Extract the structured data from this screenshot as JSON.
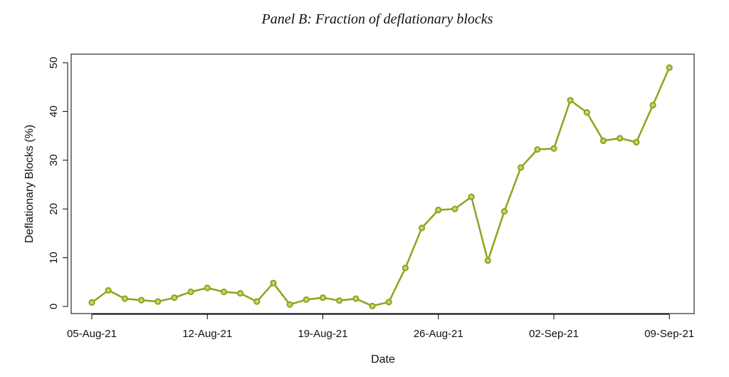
{
  "chart_data": {
    "type": "line",
    "title": "Panel B: Fraction of deflationary blocks",
    "xlabel": "Date",
    "ylabel": "Deflationary Blocks (%)",
    "ylim": [
      0,
      50
    ],
    "yticks": [
      0,
      10,
      20,
      30,
      40,
      50
    ],
    "x_tick_labels": [
      "05-Aug-21",
      "12-Aug-21",
      "19-Aug-21",
      "26-Aug-21",
      "02-Sep-21",
      "09-Sep-21"
    ],
    "x_tick_days": [
      5,
      12,
      19,
      26,
      33,
      40
    ],
    "xlim_days": [
      3.75,
      41.5
    ],
    "grid": false,
    "legend": "none",
    "color": "#8fa31c",
    "series": [
      {
        "x_days": [
          5,
          6,
          7,
          8,
          9,
          10,
          11,
          12,
          13,
          14,
          15,
          16,
          17,
          18,
          19,
          20,
          21,
          22,
          23,
          24,
          25,
          26,
          27,
          28,
          29,
          30,
          31,
          32,
          33,
          34,
          35,
          36,
          37,
          38,
          39,
          40
        ],
        "values": [
          0.8,
          3.3,
          1.6,
          1.3,
          1.0,
          1.8,
          3.0,
          3.8,
          3.0,
          2.7,
          1.0,
          4.8,
          0.4,
          1.4,
          1.8,
          1.2,
          1.6,
          0.1,
          0.9,
          7.9,
          16.1,
          19.8,
          20.0,
          22.5,
          9.4,
          19.5,
          28.5,
          32.2,
          32.4,
          42.3,
          39.8,
          34.0,
          34.5,
          33.7,
          41.3,
          49.0
        ]
      }
    ]
  }
}
